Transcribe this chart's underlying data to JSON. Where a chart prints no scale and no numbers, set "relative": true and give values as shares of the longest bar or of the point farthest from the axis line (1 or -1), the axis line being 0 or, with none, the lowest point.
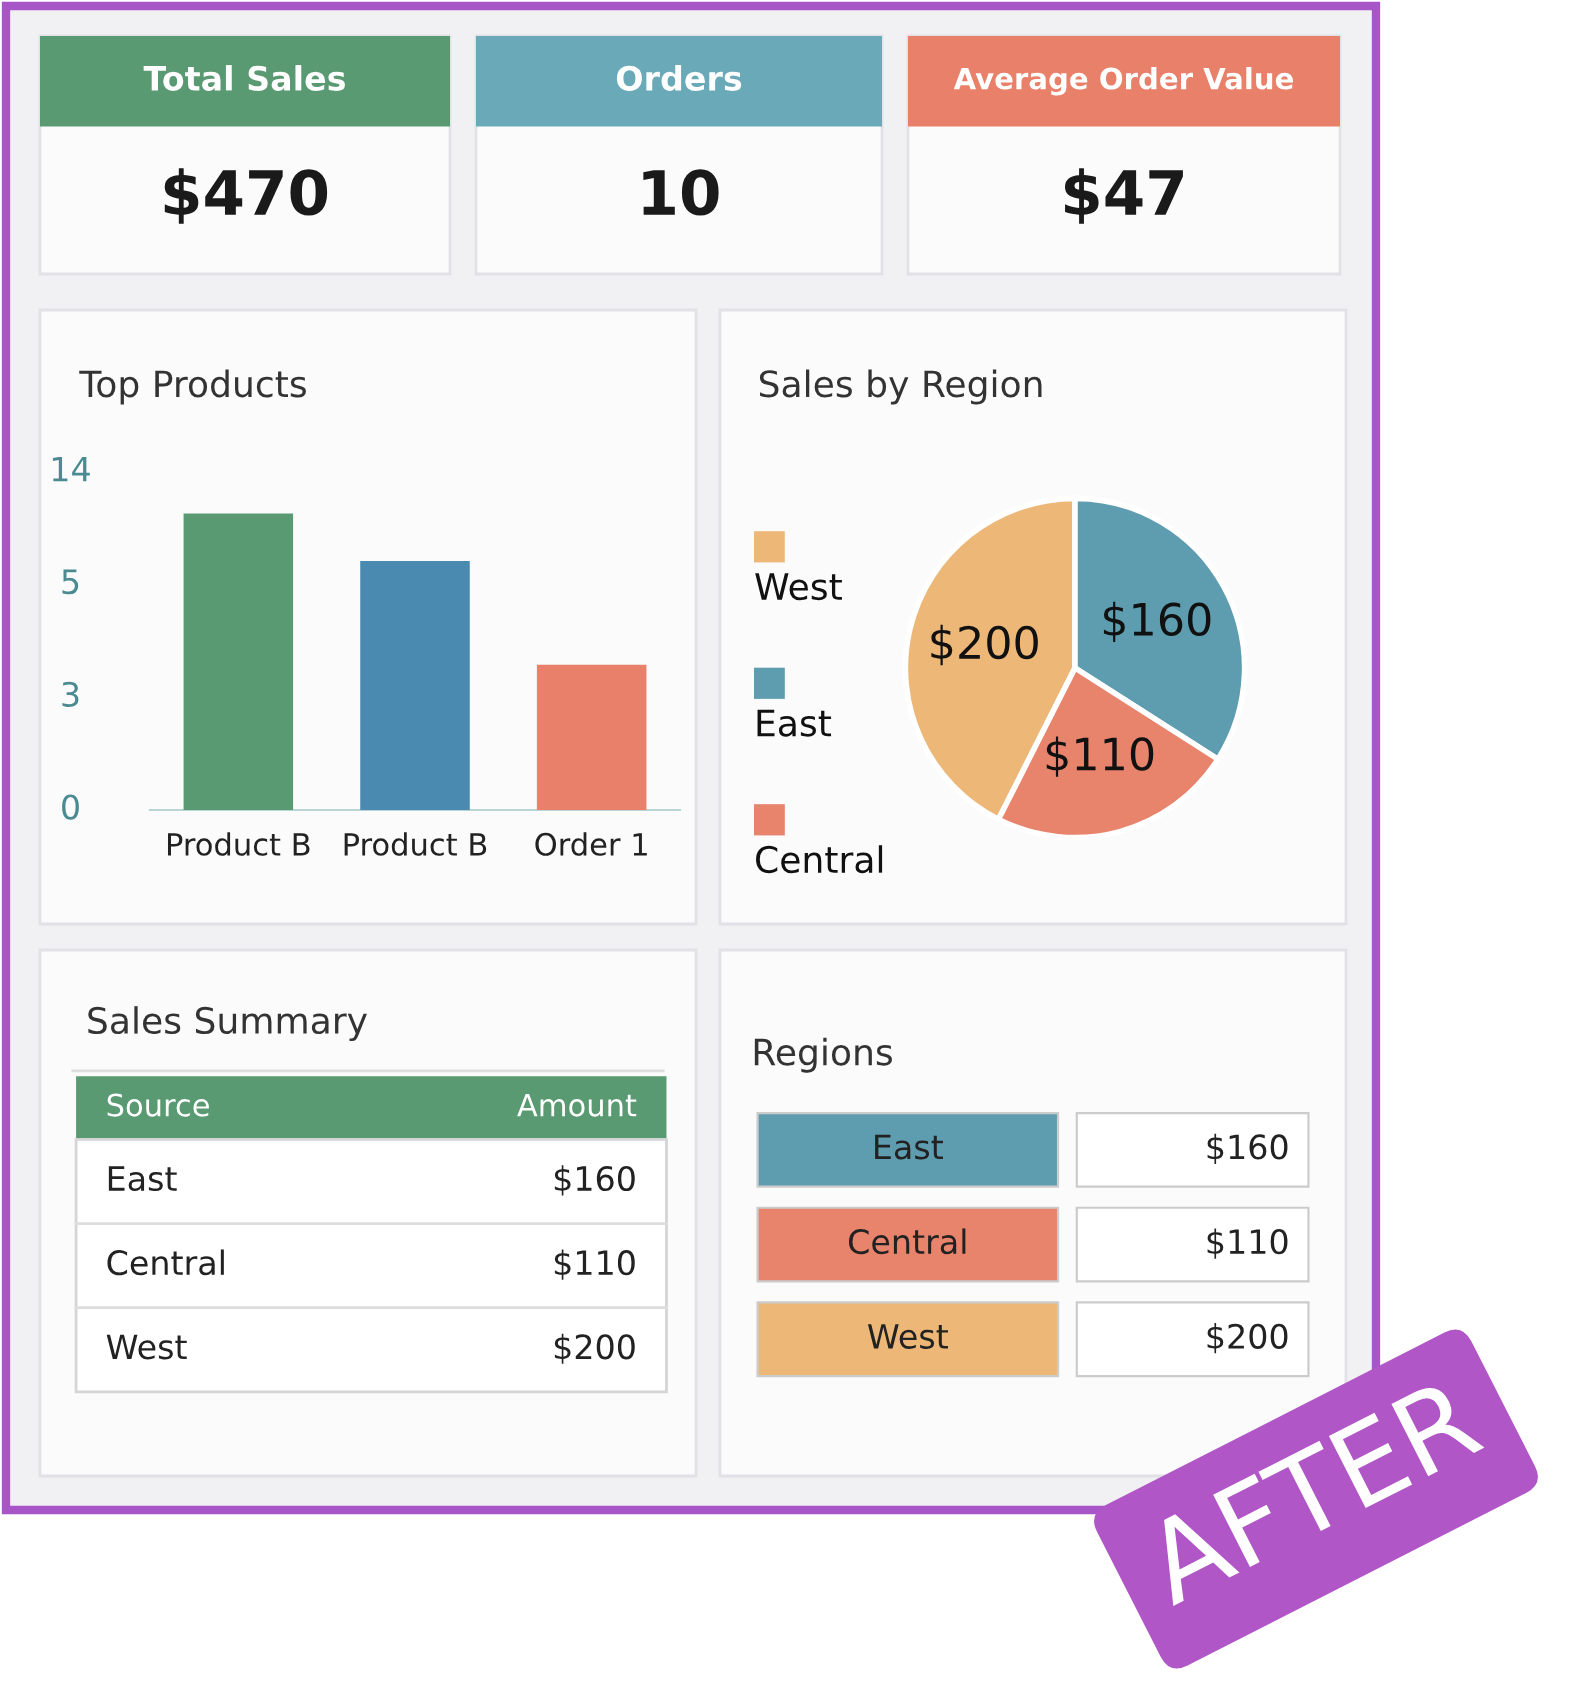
{
  "chart_data": [
    {
      "type": "other",
      "title": "Total Sales",
      "annotations": [
        "$470"
      ],
      "color": "#5a9a72"
    },
    {
      "type": "other",
      "title": "Orders",
      "annotations": [
        "10"
      ],
      "color": "#6aaab8"
    },
    {
      "type": "other",
      "title": "Average Order Value",
      "annotations": [
        "$47"
      ],
      "color": "#e8806a"
    },
    {
      "type": "bar",
      "title": "Top Products",
      "categories": [
        "Product B",
        "Product B",
        "Order 1"
      ],
      "values": [
        1,
        0.84,
        0.49
      ],
      "relative": true,
      "colors": [
        "#5a9a72",
        "#4a8ab0",
        "#e8806a"
      ],
      "annotations": [
        "0",
        "3",
        "5",
        "14"
      ]
    },
    {
      "type": "pie",
      "title": "Sales by Region",
      "categories": [
        "West",
        "East",
        "Central"
      ],
      "values": [
        200,
        160,
        110
      ],
      "colors": [
        "#edb877",
        "#5e9db0",
        "#e8836c"
      ],
      "value_labels": [
        "$200",
        "$160",
        "$110"
      ],
      "legend": "left"
    },
    {
      "type": "other",
      "title": "Sales Summary",
      "annotations": [
        "Source",
        "Amount"
      ],
      "categories": [
        "East",
        "Central",
        "West"
      ],
      "value_labels": [
        "$160",
        "$110",
        "$200"
      ],
      "color": "#5a9a72"
    },
    {
      "type": "other",
      "title": "Regions",
      "categories": [
        "East",
        "Central",
        "West"
      ],
      "value_labels": [
        "$160",
        "$110",
        "$200"
      ],
      "colors": [
        "#5e9db0",
        "#e8836c",
        "#edb877"
      ]
    },
    {
      "type": "other",
      "annotations": [
        "AFTER"
      ],
      "color": "#b156c7"
    }
  ]
}
